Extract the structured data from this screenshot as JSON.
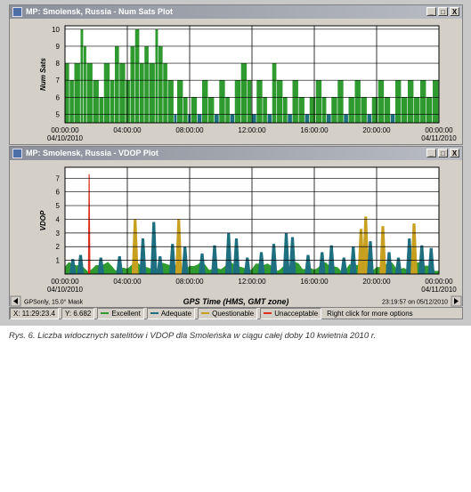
{
  "numsats_window": {
    "title": "MP: Smolensk, Russia - Num Sats Plot",
    "buttons": [
      "_",
      "□",
      "X"
    ]
  },
  "vdop_window": {
    "title": "MP: Smolensk, Russia - VDOP Plot",
    "buttons": [
      "_",
      "□",
      "X"
    ]
  },
  "footer": {
    "mask_label": "GPSonly, 15.0° Mask",
    "xlabel": "GPS Time (HMS, GMT zone)",
    "timestamp": "23:19:57 on 05/12/2010"
  },
  "status": {
    "x_readout": "X: 11:29:23.4",
    "y_readout": "Y: 6.682",
    "legend": [
      {
        "label": "Excellent",
        "color": "#2f9a2f"
      },
      {
        "label": "Adequate",
        "color": "#1e6f80"
      },
      {
        "label": "Questionable",
        "color": "#c8a020"
      },
      {
        "label": "Unacceptable",
        "color": "#e03020"
      }
    ],
    "hint": "Right click for more options"
  },
  "caption": "Rys. 6. Liczba widocznych satelitów i VDOP dla Smoleńska w ciągu całej doby 10 kwietnia 2010 r.",
  "chart_data": [
    {
      "type": "bar",
      "ylabel": "Num Sats",
      "ylim": [
        4.5,
        10.2
      ],
      "yticks": [
        5,
        6,
        7,
        8,
        9,
        10
      ],
      "xticks": [
        "00:00:00",
        "04:00:00",
        "08:00:00",
        "12:00:00",
        "16:00:00",
        "20:00:00"
      ],
      "xstart_date": "04/10/2010",
      "xend_date": "04/11/2010",
      "grid": true,
      "segments_note": "hours, value, class",
      "segments": [
        [
          0.0,
          8,
          "g"
        ],
        [
          0.3,
          7,
          "g"
        ],
        [
          0.6,
          8,
          "g"
        ],
        [
          1.0,
          10,
          "g"
        ],
        [
          1.2,
          9,
          "g"
        ],
        [
          1.4,
          8,
          "g"
        ],
        [
          1.8,
          7,
          "g"
        ],
        [
          2.2,
          6,
          "g"
        ],
        [
          2.5,
          8,
          "g"
        ],
        [
          2.9,
          7,
          "g"
        ],
        [
          3.2,
          9,
          "g"
        ],
        [
          3.5,
          8,
          "g"
        ],
        [
          3.9,
          7,
          "g"
        ],
        [
          4.2,
          9,
          "g"
        ],
        [
          4.5,
          10,
          "g"
        ],
        [
          4.8,
          8,
          "g"
        ],
        [
          5.1,
          9,
          "g"
        ],
        [
          5.4,
          8,
          "g"
        ],
        [
          5.8,
          10,
          "g"
        ],
        [
          6.0,
          9,
          "g"
        ],
        [
          6.3,
          8,
          "g"
        ],
        [
          6.6,
          7,
          "g"
        ],
        [
          7.0,
          5,
          "t"
        ],
        [
          7.2,
          7,
          "g"
        ],
        [
          7.6,
          6,
          "g"
        ],
        [
          7.9,
          5,
          "t"
        ],
        [
          8.1,
          6,
          "g"
        ],
        [
          8.5,
          5,
          "t"
        ],
        [
          8.8,
          7,
          "g"
        ],
        [
          9.2,
          6,
          "g"
        ],
        [
          9.6,
          5,
          "t"
        ],
        [
          9.9,
          7,
          "g"
        ],
        [
          10.3,
          6,
          "g"
        ],
        [
          10.6,
          5,
          "t"
        ],
        [
          10.9,
          7,
          "g"
        ],
        [
          11.3,
          8,
          "g"
        ],
        [
          11.7,
          7,
          "g"
        ],
        [
          12.0,
          5,
          "t"
        ],
        [
          12.3,
          7,
          "g"
        ],
        [
          12.7,
          6,
          "g"
        ],
        [
          13.0,
          5,
          "t"
        ],
        [
          13.3,
          8,
          "g"
        ],
        [
          13.6,
          7,
          "g"
        ],
        [
          14.0,
          6,
          "g"
        ],
        [
          14.3,
          5,
          "t"
        ],
        [
          14.6,
          7,
          "g"
        ],
        [
          15.0,
          6,
          "g"
        ],
        [
          15.4,
          5,
          "t"
        ],
        [
          15.7,
          6,
          "g"
        ],
        [
          16.1,
          7,
          "g"
        ],
        [
          16.5,
          6,
          "g"
        ],
        [
          16.8,
          5,
          "t"
        ],
        [
          17.1,
          6,
          "g"
        ],
        [
          17.5,
          7,
          "g"
        ],
        [
          17.9,
          5,
          "t"
        ],
        [
          18.2,
          6,
          "g"
        ],
        [
          18.6,
          7,
          "g"
        ],
        [
          19.0,
          6,
          "g"
        ],
        [
          19.4,
          5,
          "t"
        ],
        [
          19.7,
          6,
          "g"
        ],
        [
          20.1,
          7,
          "g"
        ],
        [
          20.5,
          6,
          "g"
        ],
        [
          20.9,
          5,
          "t"
        ],
        [
          21.2,
          7,
          "g"
        ],
        [
          21.6,
          6,
          "g"
        ],
        [
          22.0,
          7,
          "g"
        ],
        [
          22.4,
          6,
          "g"
        ],
        [
          22.8,
          7,
          "g"
        ],
        [
          23.2,
          6,
          "g"
        ],
        [
          23.6,
          7,
          "g"
        ]
      ]
    },
    {
      "type": "area",
      "ylabel": "VDOP",
      "ylim": [
        0,
        7.8
      ],
      "yticks": [
        1,
        2,
        3,
        4,
        5,
        6,
        7
      ],
      "xticks": [
        "00:00:00",
        "04:00:00",
        "08:00:00",
        "12:00:00",
        "16:00:00",
        "20:00:00"
      ],
      "xstart_date": "04/10/2010",
      "xend_date": "04/11/2010",
      "grid": true,
      "spikes_note": "hours, value, class",
      "spikes": [
        [
          0.5,
          1.1,
          "t"
        ],
        [
          1.0,
          1.4,
          "t"
        ],
        [
          1.55,
          7.3,
          "r"
        ],
        [
          2.3,
          1.2,
          "t"
        ],
        [
          3.5,
          1.3,
          "t"
        ],
        [
          4.5,
          4.0,
          "y"
        ],
        [
          5.0,
          2.6,
          "t"
        ],
        [
          5.7,
          3.8,
          "t"
        ],
        [
          6.1,
          1.3,
          "t"
        ],
        [
          6.9,
          2.2,
          "t"
        ],
        [
          7.3,
          4.0,
          "y"
        ],
        [
          7.7,
          2.0,
          "t"
        ],
        [
          8.8,
          1.5,
          "t"
        ],
        [
          9.6,
          2.1,
          "t"
        ],
        [
          10.5,
          3.0,
          "t"
        ],
        [
          11.0,
          2.6,
          "t"
        ],
        [
          11.7,
          1.2,
          "t"
        ],
        [
          12.6,
          1.6,
          "t"
        ],
        [
          13.4,
          2.2,
          "t"
        ],
        [
          14.2,
          3.0,
          "t"
        ],
        [
          14.6,
          2.7,
          "t"
        ],
        [
          15.6,
          1.4,
          "t"
        ],
        [
          16.5,
          1.6,
          "t"
        ],
        [
          17.1,
          2.1,
          "t"
        ],
        [
          17.9,
          1.2,
          "t"
        ],
        [
          18.5,
          2.0,
          "t"
        ],
        [
          19.0,
          3.3,
          "y"
        ],
        [
          19.3,
          4.2,
          "y"
        ],
        [
          19.6,
          2.4,
          "t"
        ],
        [
          20.4,
          3.5,
          "y"
        ],
        [
          20.8,
          1.6,
          "t"
        ],
        [
          21.4,
          1.2,
          "t"
        ],
        [
          22.1,
          2.6,
          "t"
        ],
        [
          22.4,
          3.7,
          "y"
        ],
        [
          22.9,
          2.1,
          "t"
        ],
        [
          23.5,
          1.9,
          "t"
        ]
      ]
    }
  ],
  "colors": {
    "excellent": "#2f9a2f",
    "adequate": "#1e6f80",
    "questionable": "#c8a020",
    "unacceptable": "#e03020"
  }
}
